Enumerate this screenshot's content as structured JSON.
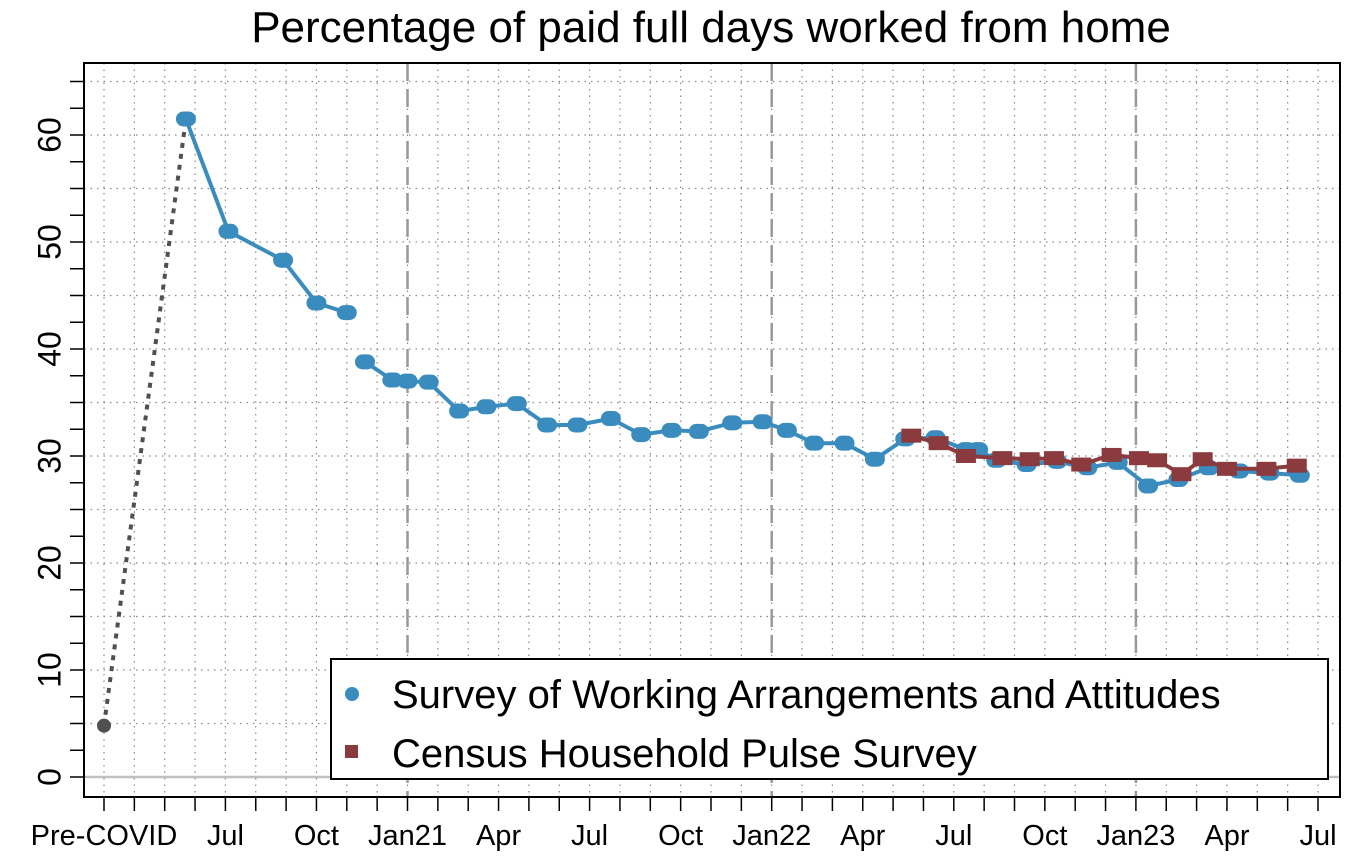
{
  "colors": {
    "swaa": "#3a8cbe",
    "pulse": "#8b3a3e",
    "precovid": "#505050",
    "grid": "#888888",
    "year_line": "#999999",
    "zero_line": "#c0c0c0"
  },
  "chart_data": {
    "type": "line",
    "title": "Percentage of paid full days worked from home",
    "xlabel": "",
    "ylabel": "",
    "ylim": [
      -2,
      66
    ],
    "y_ticks": [
      0,
      10,
      20,
      30,
      40,
      50,
      60
    ],
    "y_tick_labels": [
      "0",
      "10",
      "20",
      "30",
      "40",
      "50",
      "60"
    ],
    "x_tick_labels": [
      {
        "x": 0,
        "label": "Pre-COVID"
      },
      {
        "x": 4,
        "label": "Jul"
      },
      {
        "x": 7,
        "label": "Oct"
      },
      {
        "x": 10,
        "label": "Jan21"
      },
      {
        "x": 13,
        "label": "Apr"
      },
      {
        "x": 16,
        "label": "Jul"
      },
      {
        "x": 19,
        "label": "Oct"
      },
      {
        "x": 22,
        "label": "Jan22"
      },
      {
        "x": 25,
        "label": "Apr"
      },
      {
        "x": 28,
        "label": "Jul"
      },
      {
        "x": 31,
        "label": "Oct"
      },
      {
        "x": 34,
        "label": "Jan23"
      },
      {
        "x": 37,
        "label": "Apr"
      },
      {
        "x": 40,
        "label": "Jul"
      }
    ],
    "year_boundaries": [
      10,
      22,
      34
    ],
    "precovid": {
      "x": [
        0,
        2.7
      ],
      "y": [
        4.8,
        61.5
      ]
    },
    "series": [
      {
        "name": "Survey of Working Arrangements and Attitudes",
        "marker": "circle",
        "segments": [
          {
            "x": [
              2.7,
              4.1,
              5.9,
              7.0,
              8.0
            ],
            "y": [
              61.5,
              51.0,
              48.3,
              44.3,
              43.4
            ]
          },
          {
            "x": [
              8.6,
              9.5,
              10.0,
              10.7,
              11.7,
              12.6,
              13.6,
              14.6,
              15.6,
              16.7,
              17.7,
              18.7,
              19.6,
              20.7,
              21.7,
              22.5,
              23.4,
              24.4,
              25.4,
              26.4,
              27.4,
              28.4,
              28.8,
              29.4,
              30.4,
              31.4,
              32.4,
              33.4,
              34.4,
              35.4,
              36.4,
              37.4,
              38.4,
              39.4
            ],
            "y": [
              38.8,
              37.1,
              37.0,
              36.9,
              34.2,
              34.6,
              34.9,
              32.9,
              32.9,
              33.5,
              32.0,
              32.4,
              32.3,
              33.1,
              33.2,
              32.4,
              31.2,
              31.2,
              29.7,
              31.6,
              31.7,
              30.6,
              30.6,
              29.6,
              29.2,
              29.5,
              28.9,
              29.4,
              27.2,
              27.8,
              28.9,
              28.6,
              28.4,
              28.2
            ]
          }
        ]
      },
      {
        "name": "Census Household Pulse Survey",
        "marker": "square",
        "segments": [
          {
            "x": [
              26.6,
              27.5,
              28.4,
              29.6,
              30.5,
              31.3,
              32.2,
              33.2,
              34.1,
              34.7,
              35.5,
              36.2,
              37.0,
              38.3,
              39.3
            ],
            "y": [
              31.9,
              31.2,
              30.0,
              29.8,
              29.7,
              29.8,
              29.2,
              30.1,
              29.8,
              29.6,
              28.3,
              29.7,
              28.8,
              28.8,
              29.1
            ]
          }
        ]
      }
    ],
    "legend": {
      "position": "bottom-right",
      "entries": [
        "Survey of Working Arrangements and Attitudes",
        "Census Household Pulse Survey"
      ]
    }
  }
}
